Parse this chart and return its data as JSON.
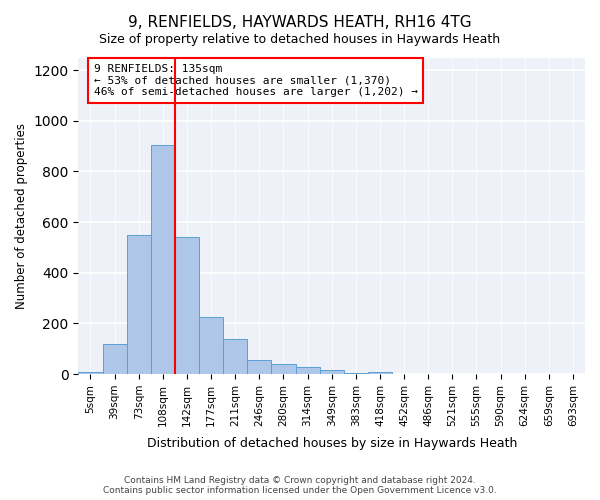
{
  "title": "9, RENFIELDS, HAYWARDS HEATH, RH16 4TG",
  "subtitle": "Size of property relative to detached houses in Haywards Heath",
  "xlabel": "Distribution of detached houses by size in Haywards Heath",
  "ylabel": "Number of detached properties",
  "bin_labels": [
    "5sqm",
    "39sqm",
    "73sqm",
    "108sqm",
    "142sqm",
    "177sqm",
    "211sqm",
    "246sqm",
    "280sqm",
    "314sqm",
    "349sqm",
    "383sqm",
    "418sqm",
    "452sqm",
    "486sqm",
    "521sqm",
    "555sqm",
    "590sqm",
    "624sqm",
    "659sqm",
    "693sqm"
  ],
  "bar_values": [
    8,
    120,
    548,
    905,
    540,
    225,
    140,
    55,
    38,
    28,
    15,
    5,
    8,
    0,
    0,
    0,
    0,
    0,
    0,
    0,
    0
  ],
  "bar_color": "#aec6e8",
  "bar_edgecolor": "#5a9fd4",
  "property_label": "9 RENFIELDS: 135sqm",
  "annotation_line1": "← 53% of detached houses are smaller (1,370)",
  "annotation_line2": "46% of semi-detached houses are larger (1,202) →",
  "red_line_x": 3.5,
  "ylim": [
    0,
    1250
  ],
  "yticks": [
    0,
    200,
    400,
    600,
    800,
    1000,
    1200
  ],
  "footer_line1": "Contains HM Land Registry data © Crown copyright and database right 2024.",
  "footer_line2": "Contains public sector information licensed under the Open Government Licence v3.0.",
  "background_color": "#eef2f8"
}
